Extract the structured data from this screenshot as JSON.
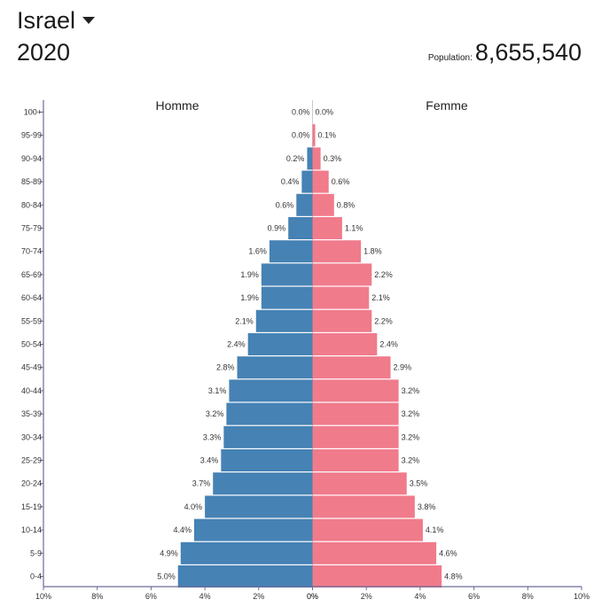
{
  "header": {
    "country": "Israel",
    "year": "2020",
    "population_label": "Population:",
    "population_value": "8,655,540"
  },
  "colors": {
    "male": "#4682b4",
    "female": "#f07b8b",
    "axis": "#6b6b9a"
  },
  "chart_data": {
    "type": "bar",
    "orientation": "horizontal-pyramid",
    "left_label": "Homme",
    "right_label": "Femme",
    "categories": [
      "100+",
      "95-99",
      "90-94",
      "85-89",
      "80-84",
      "75-79",
      "70-74",
      "65-69",
      "60-64",
      "55-59",
      "50-54",
      "45-49",
      "40-44",
      "35-39",
      "30-34",
      "25-29",
      "20-24",
      "15-19",
      "10-14",
      "5-9",
      "0-4"
    ],
    "series": [
      {
        "name": "Homme",
        "values": [
          0.0,
          0.0,
          0.2,
          0.4,
          0.6,
          0.9,
          1.6,
          1.9,
          1.9,
          2.1,
          2.4,
          2.8,
          3.1,
          3.2,
          3.3,
          3.4,
          3.7,
          4.0,
          4.4,
          4.9,
          5.0
        ]
      },
      {
        "name": "Femme",
        "values": [
          0.0,
          0.1,
          0.3,
          0.6,
          0.8,
          1.1,
          1.8,
          2.2,
          2.1,
          2.2,
          2.4,
          2.9,
          3.2,
          3.2,
          3.2,
          3.2,
          3.5,
          3.8,
          4.1,
          4.6,
          4.8
        ]
      }
    ],
    "xlim": [
      -10,
      10
    ],
    "xticks": [
      "10%",
      "8%",
      "6%",
      "4%",
      "2%",
      "0%",
      "0%",
      "2%",
      "4%",
      "6%",
      "8%",
      "10%"
    ],
    "unit": "%"
  }
}
